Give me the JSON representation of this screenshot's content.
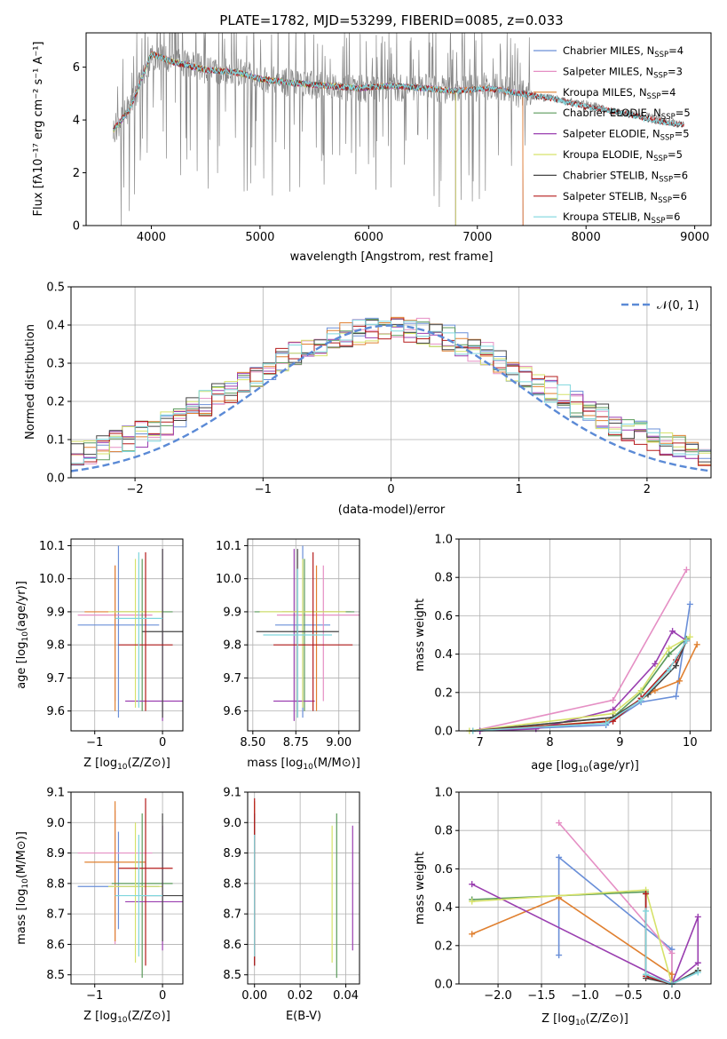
{
  "figure_title": "PLATE=1782, MJD=53299, FIBERID=0085, z=0.033",
  "series_colors": [
    "#6a8fd8",
    "#e58fc4",
    "#e08030",
    "#5a9a5a",
    "#9a3fb0",
    "#d6e26a",
    "#444444",
    "#b51c1c",
    "#7fd6dd"
  ],
  "chart_data": [
    {
      "type": "line",
      "title": "PLATE=1782, MJD=53299, FIBERID=0085, z=0.033",
      "xlabel": "wavelength [Angstrom, rest frame]",
      "ylabel": "Flux [fλ10⁻¹⁷ erg cm⁻² s⁻¹ A⁻¹]",
      "xlim": [
        3400,
        9150
      ],
      "ylim": [
        0,
        7.3
      ],
      "xticks": [
        "4000",
        "5000",
        "6000",
        "7000",
        "8000",
        "9000"
      ],
      "yticks": [
        "0",
        "2",
        "4",
        "6"
      ],
      "grid": false,
      "legend_position": "top-right",
      "data_color": "#888888",
      "data_x": [
        3650,
        3800,
        4000,
        4200,
        4500,
        4800,
        5000,
        5300,
        5600,
        5900,
        6200,
        6500,
        6800,
        7100,
        7400,
        7700,
        8000,
        8300,
        8600,
        8900
      ],
      "data_y": [
        3.6,
        4.5,
        6.4,
        6.3,
        5.9,
        5.8,
        5.6,
        5.4,
        5.3,
        5.2,
        5.2,
        5.3,
        5.1,
        5.3,
        5.0,
        4.8,
        4.6,
        4.3,
        4.1,
        3.8
      ],
      "model_x": [
        3650,
        3800,
        4000,
        4200,
        4500,
        4800,
        5000,
        5300,
        5600,
        5900,
        6200,
        6500,
        6800,
        7100,
        7400,
        7700,
        8000,
        8300,
        8600,
        8900
      ],
      "model_y": [
        3.6,
        4.4,
        6.5,
        6.2,
        5.9,
        5.8,
        5.55,
        5.4,
        5.3,
        5.2,
        5.3,
        5.2,
        5.1,
        5.2,
        5.0,
        4.8,
        4.5,
        4.3,
        4.0,
        3.8
      ],
      "series": [
        {
          "name": "Chabrier MILES, N_SSP=4",
          "name_base": "Chabrier MILES, N",
          "name_sub": "SSP",
          "name_tail": "=4",
          "end_x": 7420
        },
        {
          "name": "Salpeter MILES, N_SSP=3",
          "name_base": "Salpeter MILES, N",
          "name_sub": "SSP",
          "name_tail": "=3",
          "end_x": 7420
        },
        {
          "name": "Kroupa MILES, N_SSP=4",
          "name_base": "Kroupa MILES, N",
          "name_sub": "SSP",
          "name_tail": "=4",
          "end_x": 7420
        },
        {
          "name": "Chabrier ELODIE, N_SSP=5",
          "name_base": "Chabrier ELODIE, N",
          "name_sub": "SSP",
          "name_tail": "=5",
          "end_x": 6800
        },
        {
          "name": "Salpeter ELODIE, N_SSP=5",
          "name_base": "Salpeter ELODIE, N",
          "name_sub": "SSP",
          "name_tail": "=5",
          "end_x": 6800
        },
        {
          "name": "Kroupa ELODIE, N_SSP=5",
          "name_base": "Kroupa ELODIE, N",
          "name_sub": "SSP",
          "name_tail": "=5",
          "end_x": 6800
        },
        {
          "name": "Chabrier STELIB, N_SSP=6",
          "name_base": "Chabrier STELIB, N",
          "name_sub": "SSP",
          "name_tail": "=6",
          "end_x": 8900
        },
        {
          "name": "Salpeter STELIB, N_SSP=6",
          "name_base": "Salpeter STELIB, N",
          "name_sub": "SSP",
          "name_tail": "=6",
          "end_x": 8900
        },
        {
          "name": "Kroupa STELIB, N_SSP=6",
          "name_base": "Kroupa STELIB, N",
          "name_sub": "SSP",
          "name_tail": "=6",
          "end_x": 8900
        }
      ]
    },
    {
      "type": "line",
      "xlabel": "(data-model)/error",
      "ylabel": "Normed distribution",
      "xlim": [
        -2.5,
        2.5
      ],
      "ylim": [
        0,
        0.5
      ],
      "xticks": [
        "−2",
        "−1",
        "0",
        "1",
        "2"
      ],
      "yticks": [
        "0.0",
        "0.1",
        "0.2",
        "0.3",
        "0.4",
        "0.5"
      ],
      "grid": true,
      "legend_position": "top-right",
      "reference_curve": {
        "name": "𝒩(0, 1)",
        "mean": 0,
        "sigma": 1,
        "color": "#5b8ad6"
      },
      "histogram_bin_width": 0.1,
      "histogram_note": "nine step histograms, one per model, closely following the N(0,1) curve"
    },
    {
      "type": "scatter",
      "xlabel_base": "Z [log",
      "xlabel_sub": "10",
      "xlabel_tail": "(Z/Z⊙)]",
      "ylabel_base": "age  [log",
      "ylabel_sub": "10",
      "ylabel_tail": "(age/yr)]",
      "xlim": [
        -1.35,
        0.3
      ],
      "ylim": [
        9.54,
        10.12
      ],
      "xticks": [
        "−1",
        "0"
      ],
      "xtick_values": [
        -1,
        0
      ],
      "yticks": [
        "9.6",
        "9.7",
        "9.8",
        "9.9",
        "10.0",
        "10.1"
      ],
      "ytick_values": [
        9.6,
        9.7,
        9.8,
        9.9,
        10.0,
        10.1
      ],
      "grid": true,
      "crosses": [
        {
          "x": -0.65,
          "y": 9.86,
          "xerr": 0.6,
          "yerr_lo": 0.28,
          "yerr_hi": 0.24
        },
        {
          "x": -0.7,
          "y": 9.89,
          "xerr": 0.55,
          "yerr_lo": 0.26,
          "yerr_hi": 0.15
        },
        {
          "x": -0.7,
          "y": 9.9,
          "xerr": 0.45,
          "yerr_lo": 0.3,
          "yerr_hi": 0.14
        },
        {
          "x": -0.3,
          "y": 9.9,
          "xerr": 0.45,
          "yerr_lo": 0.3,
          "yerr_hi": 0.16
        },
        {
          "x": 0.0,
          "y": 9.63,
          "xerr": 0.55,
          "yerr_lo": 0.06,
          "yerr_hi": 0.46
        },
        {
          "x": -0.4,
          "y": 9.9,
          "xerr": 0.4,
          "yerr_lo": 0.29,
          "yerr_hi": 0.16
        },
        {
          "x": 0.0,
          "y": 9.84,
          "xerr": 0.3,
          "yerr_lo": 0.26,
          "yerr_hi": 0.25
        },
        {
          "x": -0.25,
          "y": 9.8,
          "xerr": 0.4,
          "yerr_lo": 0.2,
          "yerr_hi": 0.28
        },
        {
          "x": -0.35,
          "y": 9.88,
          "xerr": 0.35,
          "yerr_lo": 0.27,
          "yerr_hi": 0.2
        }
      ]
    },
    {
      "type": "scatter",
      "xlabel_base": "mass [log",
      "xlabel_sub": "10",
      "xlabel_tail": "(M/M⊙)]",
      "xlim": [
        8.47,
        9.12
      ],
      "ylim": [
        9.54,
        10.12
      ],
      "xticks": [
        "8.50",
        "8.75",
        "9.00"
      ],
      "xtick_values": [
        8.5,
        8.75,
        9.0
      ],
      "yticks": [
        "9.6",
        "9.7",
        "9.8",
        "9.9",
        "10.0",
        "10.1"
      ],
      "ytick_values": [
        9.6,
        9.7,
        9.8,
        9.9,
        10.0,
        10.1
      ],
      "grid": true,
      "crosses": [
        {
          "x": 8.79,
          "y": 9.86,
          "xerr": 0.16,
          "yerr_lo": 0.28,
          "yerr_hi": 0.24
        },
        {
          "x": 8.91,
          "y": 9.89,
          "xerr": 0.27,
          "yerr_lo": 0.26,
          "yerr_hi": 0.15
        },
        {
          "x": 8.87,
          "y": 9.9,
          "xerr": 0.2,
          "yerr_lo": 0.3,
          "yerr_hi": 0.14
        },
        {
          "x": 8.8,
          "y": 9.9,
          "xerr": 0.29,
          "yerr_lo": 0.3,
          "yerr_hi": 0.16
        },
        {
          "x": 8.74,
          "y": 9.63,
          "xerr": 0.12,
          "yerr_lo": 0.06,
          "yerr_hi": 0.46
        },
        {
          "x": 8.79,
          "y": 9.9,
          "xerr": 0.25,
          "yerr_lo": 0.29,
          "yerr_hi": 0.16
        },
        {
          "x": 8.76,
          "y": 9.84,
          "xerr": 0.24,
          "yerr_lo": 0.26,
          "yerr_hi": 0.25
        },
        {
          "x": 8.85,
          "y": 9.8,
          "xerr": 0.23,
          "yerr_lo": 0.2,
          "yerr_hi": 0.28
        },
        {
          "x": 8.76,
          "y": 9.83,
          "xerr": 0.2,
          "yerr_lo": 0.25,
          "yerr_hi": 0.2
        }
      ]
    },
    {
      "type": "line",
      "xlabel_base": "age  [log",
      "xlabel_sub": "10",
      "xlabel_tail": "(age/yr)]",
      "ylabel": "mass weight",
      "xlim": [
        6.7,
        10.3
      ],
      "ylim": [
        0,
        1.0
      ],
      "xticks": [
        "7",
        "8",
        "9",
        "10"
      ],
      "xtick_values": [
        7,
        8,
        9,
        10
      ],
      "yticks": [
        "0.0",
        "0.2",
        "0.4",
        "0.6",
        "0.8",
        "1.0"
      ],
      "ytick_values": [
        0,
        0.2,
        0.4,
        0.6,
        0.8,
        1.0
      ],
      "grid": true,
      "series": [
        {
          "x": [
            6.9,
            8.8,
            9.3,
            9.8,
            10.0
          ],
          "y": [
            0.0,
            0.03,
            0.15,
            0.18,
            0.66
          ]
        },
        {
          "x": [
            6.9,
            8.9,
            9.95
          ],
          "y": [
            0.0,
            0.16,
            0.84
          ]
        },
        {
          "x": [
            6.9,
            8.8,
            9.5,
            9.85,
            10.1
          ],
          "y": [
            0.0,
            0.05,
            0.21,
            0.26,
            0.45
          ]
        },
        {
          "x": [
            6.9,
            8.9,
            9.3,
            9.7,
            9.95
          ],
          "y": [
            0.0,
            0.07,
            0.2,
            0.4,
            0.48
          ]
        },
        {
          "x": [
            7.0,
            7.8,
            8.9,
            9.5,
            9.75,
            9.95
          ],
          "y": [
            0.0,
            0.01,
            0.11,
            0.35,
            0.52,
            0.47
          ]
        },
        {
          "x": [
            6.85,
            8.9,
            9.3,
            9.7,
            10.0
          ],
          "y": [
            0.0,
            0.09,
            0.21,
            0.43,
            0.49
          ]
        },
        {
          "x": [
            6.9,
            8.9,
            9.4,
            9.8,
            9.95
          ],
          "y": [
            0.0,
            0.07,
            0.19,
            0.34,
            0.47
          ]
        },
        {
          "x": [
            6.9,
            8.9,
            9.3,
            9.8,
            9.95
          ],
          "y": [
            0.0,
            0.05,
            0.17,
            0.37,
            0.47
          ]
        },
        {
          "x": [
            6.9,
            8.8,
            9.3,
            9.7,
            9.95
          ],
          "y": [
            0.0,
            0.04,
            0.16,
            0.32,
            0.47
          ]
        }
      ]
    },
    {
      "type": "scatter",
      "xlabel_base": "Z [log",
      "xlabel_sub": "10",
      "xlabel_tail": "(Z/Z⊙)]",
      "ylabel_base": "mass [log",
      "ylabel_sub": "10",
      "ylabel_tail": "(M/M⊙)]",
      "xlim": [
        -1.35,
        0.3
      ],
      "ylim": [
        8.47,
        9.1
      ],
      "xticks": [
        "−1",
        "0"
      ],
      "xtick_values": [
        -1,
        0
      ],
      "yticks": [
        "8.5",
        "8.6",
        "8.7",
        "8.8",
        "8.9",
        "9.0",
        "9.1"
      ],
      "ytick_values": [
        8.5,
        8.6,
        8.7,
        8.8,
        8.9,
        9.0,
        9.1
      ],
      "grid": true,
      "crosses": [
        {
          "x": -0.65,
          "y": 8.79,
          "xerr": 0.6,
          "yerr_lo": 0.14,
          "yerr_hi": 0.18
        },
        {
          "x": -0.7,
          "y": 8.9,
          "xerr": 0.55,
          "yerr_lo": 0.3,
          "yerr_hi": 0.14
        },
        {
          "x": -0.7,
          "y": 8.87,
          "xerr": 0.45,
          "yerr_lo": 0.26,
          "yerr_hi": 0.2
        },
        {
          "x": -0.3,
          "y": 8.8,
          "xerr": 0.45,
          "yerr_lo": 0.31,
          "yerr_hi": 0.23
        },
        {
          "x": 0.0,
          "y": 8.74,
          "xerr": 0.55,
          "yerr_lo": 0.16,
          "yerr_hi": 0.25
        },
        {
          "x": -0.4,
          "y": 8.79,
          "xerr": 0.4,
          "yerr_lo": 0.25,
          "yerr_hi": 0.21
        },
        {
          "x": 0.0,
          "y": 8.76,
          "xerr": 0.3,
          "yerr_lo": 0.15,
          "yerr_hi": 0.27
        },
        {
          "x": -0.25,
          "y": 8.85,
          "xerr": 0.4,
          "yerr_lo": 0.32,
          "yerr_hi": 0.23
        },
        {
          "x": -0.35,
          "y": 8.76,
          "xerr": 0.35,
          "yerr_lo": 0.2,
          "yerr_hi": 0.2
        }
      ]
    },
    {
      "type": "scatter",
      "xlabel": "E(B-V)",
      "xlim": [
        -0.003,
        0.046
      ],
      "ylim": [
        8.47,
        9.1
      ],
      "xticks": [
        "0.00",
        "0.02",
        "0.04"
      ],
      "xtick_values": [
        0,
        0.02,
        0.04
      ],
      "yticks": [
        "8.5",
        "8.6",
        "8.7",
        "8.8",
        "8.9",
        "9.0",
        "9.1"
      ],
      "ytick_values": [
        8.5,
        8.6,
        8.7,
        8.8,
        8.9,
        9.0,
        9.1
      ],
      "grid": true,
      "crosses": [
        {
          "x": 0.0,
          "y": 8.79,
          "xerr": 0.0,
          "yerr_lo": 0.14,
          "yerr_hi": 0.18
        },
        {
          "x": 0.0,
          "y": 8.9,
          "xerr": 0.0,
          "yerr_lo": 0.3,
          "yerr_hi": 0.14
        },
        {
          "x": 0.0,
          "y": 8.87,
          "xerr": 0.0,
          "yerr_lo": 0.26,
          "yerr_hi": 0.2
        },
        {
          "x": 0.036,
          "y": 8.8,
          "xerr": 0.0,
          "yerr_lo": 0.31,
          "yerr_hi": 0.23
        },
        {
          "x": 0.043,
          "y": 8.74,
          "xerr": 0.0,
          "yerr_lo": 0.16,
          "yerr_hi": 0.25
        },
        {
          "x": 0.034,
          "y": 8.79,
          "xerr": 0.0,
          "yerr_lo": 0.25,
          "yerr_hi": 0.2
        },
        {
          "x": 0.0,
          "y": 8.76,
          "xerr": 0.0,
          "yerr_lo": 0.23,
          "yerr_hi": 0.27
        },
        {
          "x": 0.0,
          "y": 8.85,
          "xerr": 0.0,
          "yerr_lo": 0.32,
          "yerr_hi": 0.23
        },
        {
          "x": 0.0,
          "y": 8.76,
          "xerr": 0.0,
          "yerr_lo": 0.2,
          "yerr_hi": 0.2
        }
      ]
    },
    {
      "type": "line",
      "xlabel_base": "Z [log",
      "xlabel_sub": "10",
      "xlabel_tail": "(Z/Z⊙)]",
      "ylabel": "mass weight",
      "xlim": [
        -2.45,
        0.45
      ],
      "ylim": [
        0,
        1.0
      ],
      "xticks": [
        "−2.0",
        "−1.5",
        "−1.0",
        "−0.5",
        "0.0"
      ],
      "xtick_values": [
        -2.0,
        -1.5,
        -1.0,
        -0.5,
        0.0
      ],
      "yticks": [
        "0.0",
        "0.2",
        "0.4",
        "0.6",
        "0.8",
        "1.0"
      ],
      "ytick_values": [
        0,
        0.2,
        0.4,
        0.6,
        0.8,
        1.0
      ],
      "grid": true,
      "series": [
        {
          "x": [
            -1.3,
            -1.3,
            0.0,
            0.0
          ],
          "y": [
            0.15,
            0.66,
            0.18,
            0.02
          ]
        },
        {
          "x": [
            -1.3,
            0.0,
            0.0
          ],
          "y": [
            0.84,
            0.16,
            0.0
          ]
        },
        {
          "x": [
            -2.3,
            -1.3,
            0.0,
            0.0
          ],
          "y": [
            0.26,
            0.45,
            0.05,
            0.0
          ]
        },
        {
          "x": [
            -2.3,
            -0.3,
            -0.3,
            0.0
          ],
          "y": [
            0.44,
            0.48,
            0.05,
            0.0
          ]
        },
        {
          "x": [
            -2.3,
            0.0,
            0.3,
            0.3,
            0.0
          ],
          "y": [
            0.52,
            0.0,
            0.11,
            0.35,
            0.0
          ]
        },
        {
          "x": [
            -2.3,
            -0.3,
            0.0,
            0.3
          ],
          "y": [
            0.43,
            0.49,
            0.0,
            0.07
          ]
        },
        {
          "x": [
            -0.3,
            -0.3,
            0.0,
            0.3
          ],
          "y": [
            0.47,
            0.03,
            0.0,
            0.07
          ]
        },
        {
          "x": [
            -0.3,
            -0.3,
            0.0
          ],
          "y": [
            0.47,
            0.04,
            0.0
          ]
        },
        {
          "x": [
            -0.3,
            -0.3,
            0.0,
            0.3
          ],
          "y": [
            0.38,
            0.05,
            0.0,
            0.06
          ]
        }
      ]
    }
  ]
}
